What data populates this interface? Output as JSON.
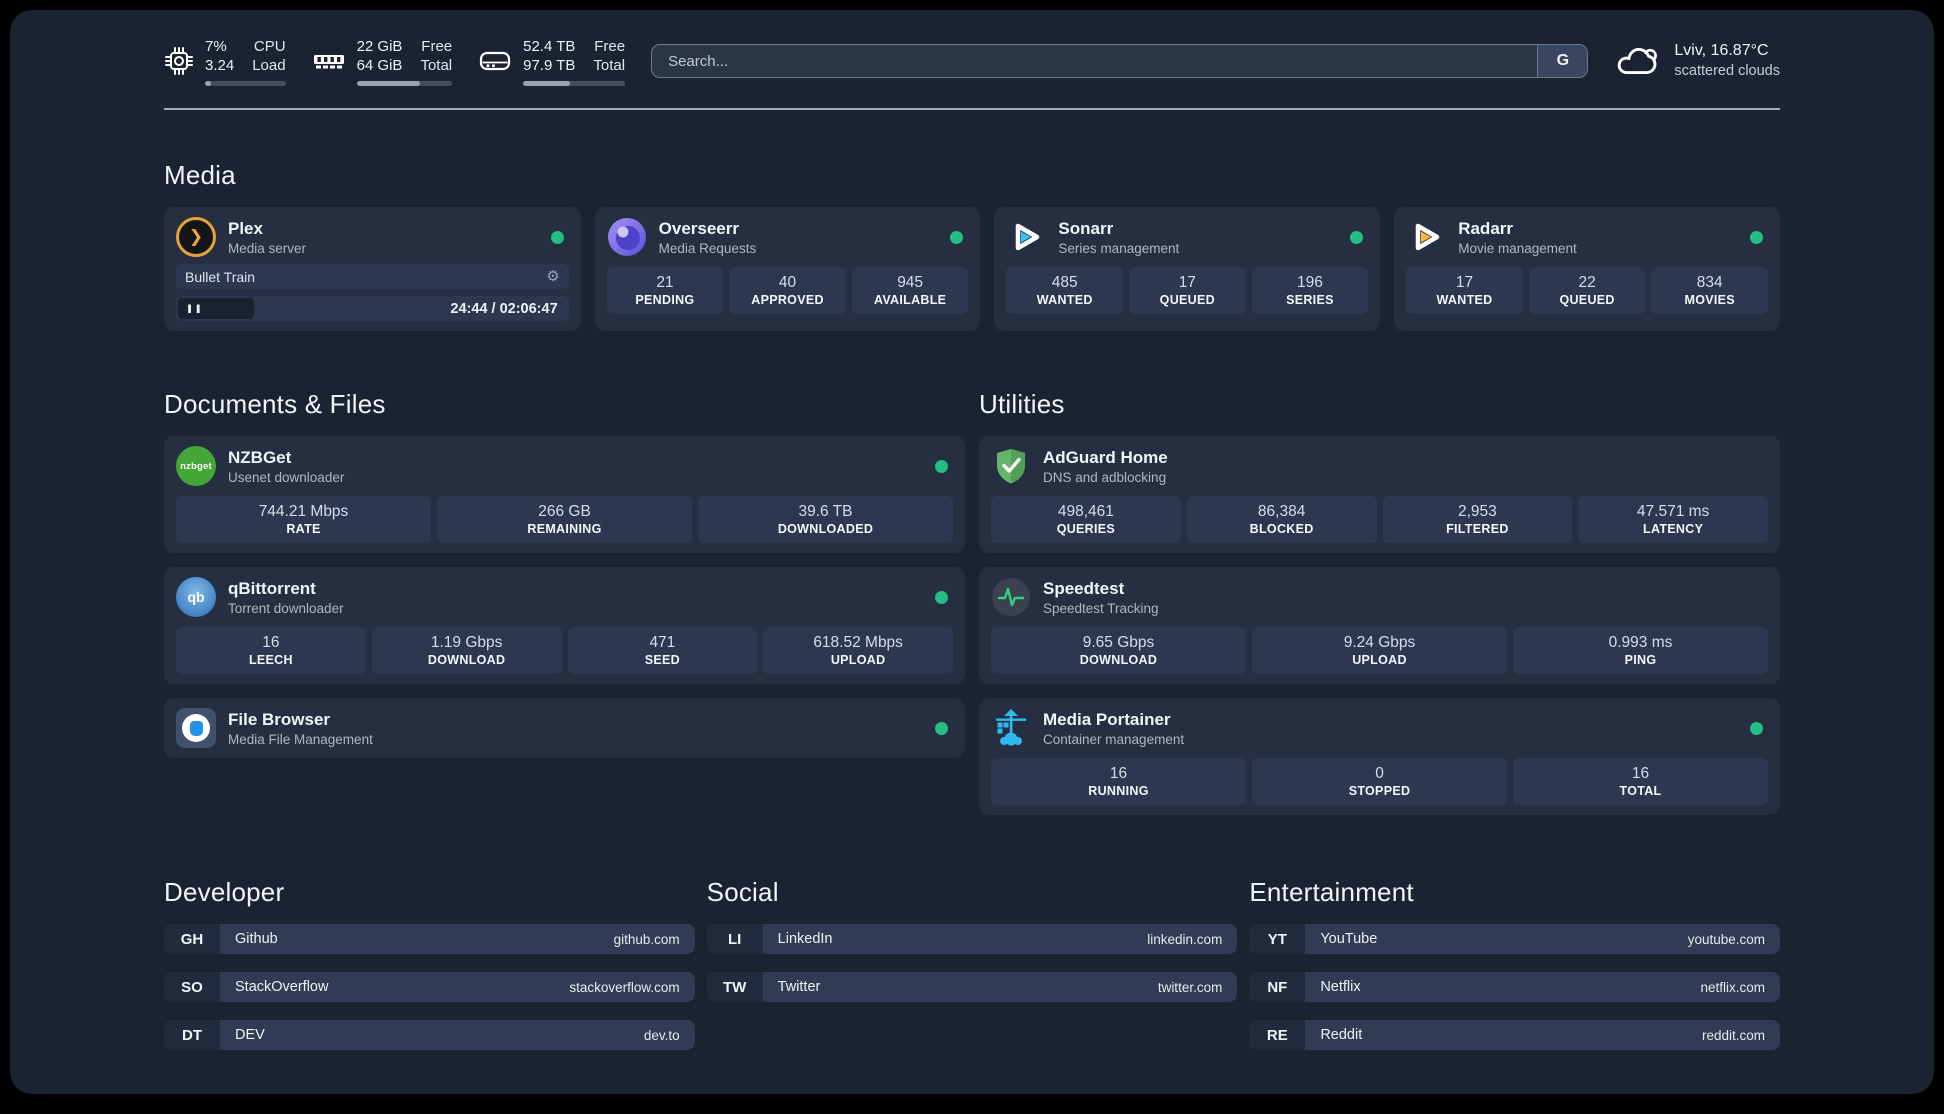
{
  "topbar": {
    "cpu": {
      "values": [
        "7%",
        "3.24"
      ],
      "labels": [
        "CPU",
        "Load"
      ],
      "progress": 7
    },
    "memory": {
      "values": [
        "22 GiB",
        "64 GiB"
      ],
      "labels": [
        "Free",
        "Total"
      ],
      "progress": 66
    },
    "storage": {
      "values": [
        "52.4 TB",
        "97.9 TB"
      ],
      "labels": [
        "Free",
        "Total"
      ],
      "progress": 46
    },
    "search": {
      "placeholder": "Search...",
      "engine": "G"
    },
    "weather": {
      "location_temp": "Lviv, 16.87°C",
      "condition": "scattered clouds"
    }
  },
  "sections": {
    "media": "Media",
    "documents": "Documents & Files",
    "utilities": "Utilities",
    "developer": "Developer",
    "social": "Social",
    "entertainment": "Entertainment"
  },
  "apps": {
    "plex": {
      "name": "Plex",
      "desc": "Media server",
      "now_playing": "Bullet Train",
      "time": "24:44 / 02:06:47",
      "progress": 19.5,
      "pause_glyph": "❚❚",
      "gear_glyph": "⚙"
    },
    "overseerr": {
      "name": "Overseerr",
      "desc": "Media Requests",
      "stats": [
        {
          "value": "21",
          "label": "PENDING"
        },
        {
          "value": "40",
          "label": "APPROVED"
        },
        {
          "value": "945",
          "label": "AVAILABLE"
        }
      ]
    },
    "sonarr": {
      "name": "Sonarr",
      "desc": "Series management",
      "stats": [
        {
          "value": "485",
          "label": "WANTED"
        },
        {
          "value": "17",
          "label": "QUEUED"
        },
        {
          "value": "196",
          "label": "SERIES"
        }
      ]
    },
    "radarr": {
      "name": "Radarr",
      "desc": "Movie management",
      "stats": [
        {
          "value": "17",
          "label": "WANTED"
        },
        {
          "value": "22",
          "label": "QUEUED"
        },
        {
          "value": "834",
          "label": "MOVIES"
        }
      ]
    },
    "nzbget": {
      "name": "NZBGet",
      "desc": "Usenet downloader",
      "icon_text": "nzbget",
      "stats": [
        {
          "value": "744.21 Mbps",
          "label": "RATE"
        },
        {
          "value": "266 GB",
          "label": "REMAINING"
        },
        {
          "value": "39.6 TB",
          "label": "DOWNLOADED"
        }
      ]
    },
    "qbittorrent": {
      "name": "qBittorrent",
      "desc": "Torrent downloader",
      "icon_text": "qb",
      "stats": [
        {
          "value": "16",
          "label": "LEECH"
        },
        {
          "value": "1.19 Gbps",
          "label": "DOWNLOAD"
        },
        {
          "value": "471",
          "label": "SEED"
        },
        {
          "value": "618.52 Mbps",
          "label": "UPLOAD"
        }
      ]
    },
    "filebrowser": {
      "name": "File Browser",
      "desc": "Media File Management"
    },
    "adguard": {
      "name": "AdGuard Home",
      "desc": "DNS and adblocking",
      "stats": [
        {
          "value": "498,461",
          "label": "QUERIES"
        },
        {
          "value": "86,384",
          "label": "BLOCKED"
        },
        {
          "value": "2,953",
          "label": "FILTERED"
        },
        {
          "value": "47.571 ms",
          "label": "LATENCY"
        }
      ]
    },
    "speedtest": {
      "name": "Speedtest",
      "desc": "Speedtest Tracking",
      "stats": [
        {
          "value": "9.65 Gbps",
          "label": "DOWNLOAD"
        },
        {
          "value": "9.24 Gbps",
          "label": "UPLOAD"
        },
        {
          "value": "0.993 ms",
          "label": "PING"
        }
      ]
    },
    "portainer": {
      "name": "Media Portainer",
      "desc": "Container management",
      "stats": [
        {
          "value": "16",
          "label": "RUNNING"
        },
        {
          "value": "0",
          "label": "STOPPED"
        },
        {
          "value": "16",
          "label": "TOTAL"
        }
      ]
    }
  },
  "links": {
    "developer": [
      {
        "abbr": "GH",
        "name": "Github",
        "url": "github.com"
      },
      {
        "abbr": "SO",
        "name": "StackOverflow",
        "url": "stackoverflow.com"
      },
      {
        "abbr": "DT",
        "name": "DEV",
        "url": "dev.to"
      }
    ],
    "social": [
      {
        "abbr": "LI",
        "name": "LinkedIn",
        "url": "linkedin.com"
      },
      {
        "abbr": "TW",
        "name": "Twitter",
        "url": "twitter.com"
      }
    ],
    "entertainment": [
      {
        "abbr": "YT",
        "name": "YouTube",
        "url": "youtube.com"
      },
      {
        "abbr": "NF",
        "name": "Netflix",
        "url": "netflix.com"
      },
      {
        "abbr": "RE",
        "name": "Reddit",
        "url": "reddit.com"
      }
    ]
  },
  "colors": {
    "status_online": "#25bd83"
  }
}
